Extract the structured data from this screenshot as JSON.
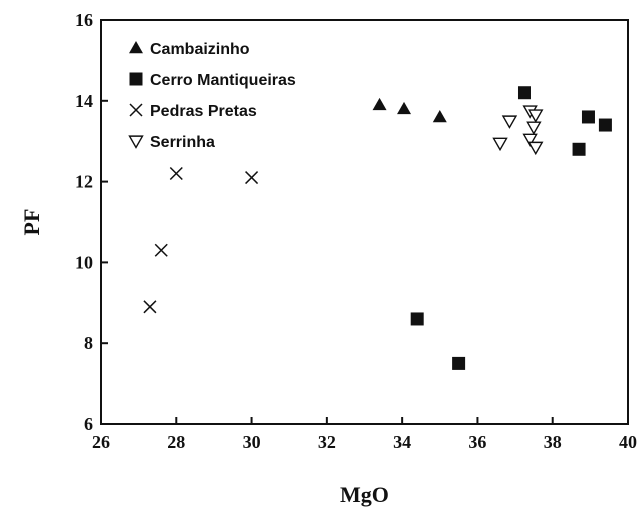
{
  "chart_data": {
    "type": "scatter",
    "xlabel": "MgO",
    "ylabel": "PF",
    "xlim": [
      26,
      40
    ],
    "ylim": [
      6,
      16
    ],
    "xticks": [
      26,
      28,
      30,
      32,
      34,
      36,
      38,
      40
    ],
    "yticks": [
      6,
      8,
      10,
      12,
      14,
      16
    ],
    "grid": false,
    "legend_position": "top-left",
    "series": [
      {
        "name": "Cambaizinho",
        "marker": "triangle-up-filled",
        "color": "#111111",
        "points": [
          [
            33.4,
            13.9
          ],
          [
            34.05,
            13.8
          ],
          [
            35.0,
            13.6
          ]
        ]
      },
      {
        "name": "Cerro Mantiqueiras",
        "marker": "square-filled",
        "color": "#111111",
        "points": [
          [
            37.25,
            14.2
          ],
          [
            38.95,
            13.6
          ],
          [
            39.4,
            13.4
          ],
          [
            38.7,
            12.8
          ],
          [
            34.4,
            8.6
          ],
          [
            35.5,
            7.5
          ]
        ]
      },
      {
        "name": "Pedras Pretas",
        "marker": "x",
        "color": "#111111",
        "points": [
          [
            28.0,
            12.2
          ],
          [
            30.0,
            12.1
          ],
          [
            27.6,
            10.3
          ],
          [
            27.3,
            8.9
          ]
        ]
      },
      {
        "name": "Serrinha",
        "marker": "triangle-down-open",
        "color": "#111111",
        "points": [
          [
            36.6,
            12.95
          ],
          [
            36.85,
            13.5
          ],
          [
            37.4,
            13.75
          ],
          [
            37.55,
            13.65
          ],
          [
            37.5,
            13.35
          ],
          [
            37.4,
            13.05
          ],
          [
            37.55,
            12.85
          ]
        ]
      }
    ]
  }
}
